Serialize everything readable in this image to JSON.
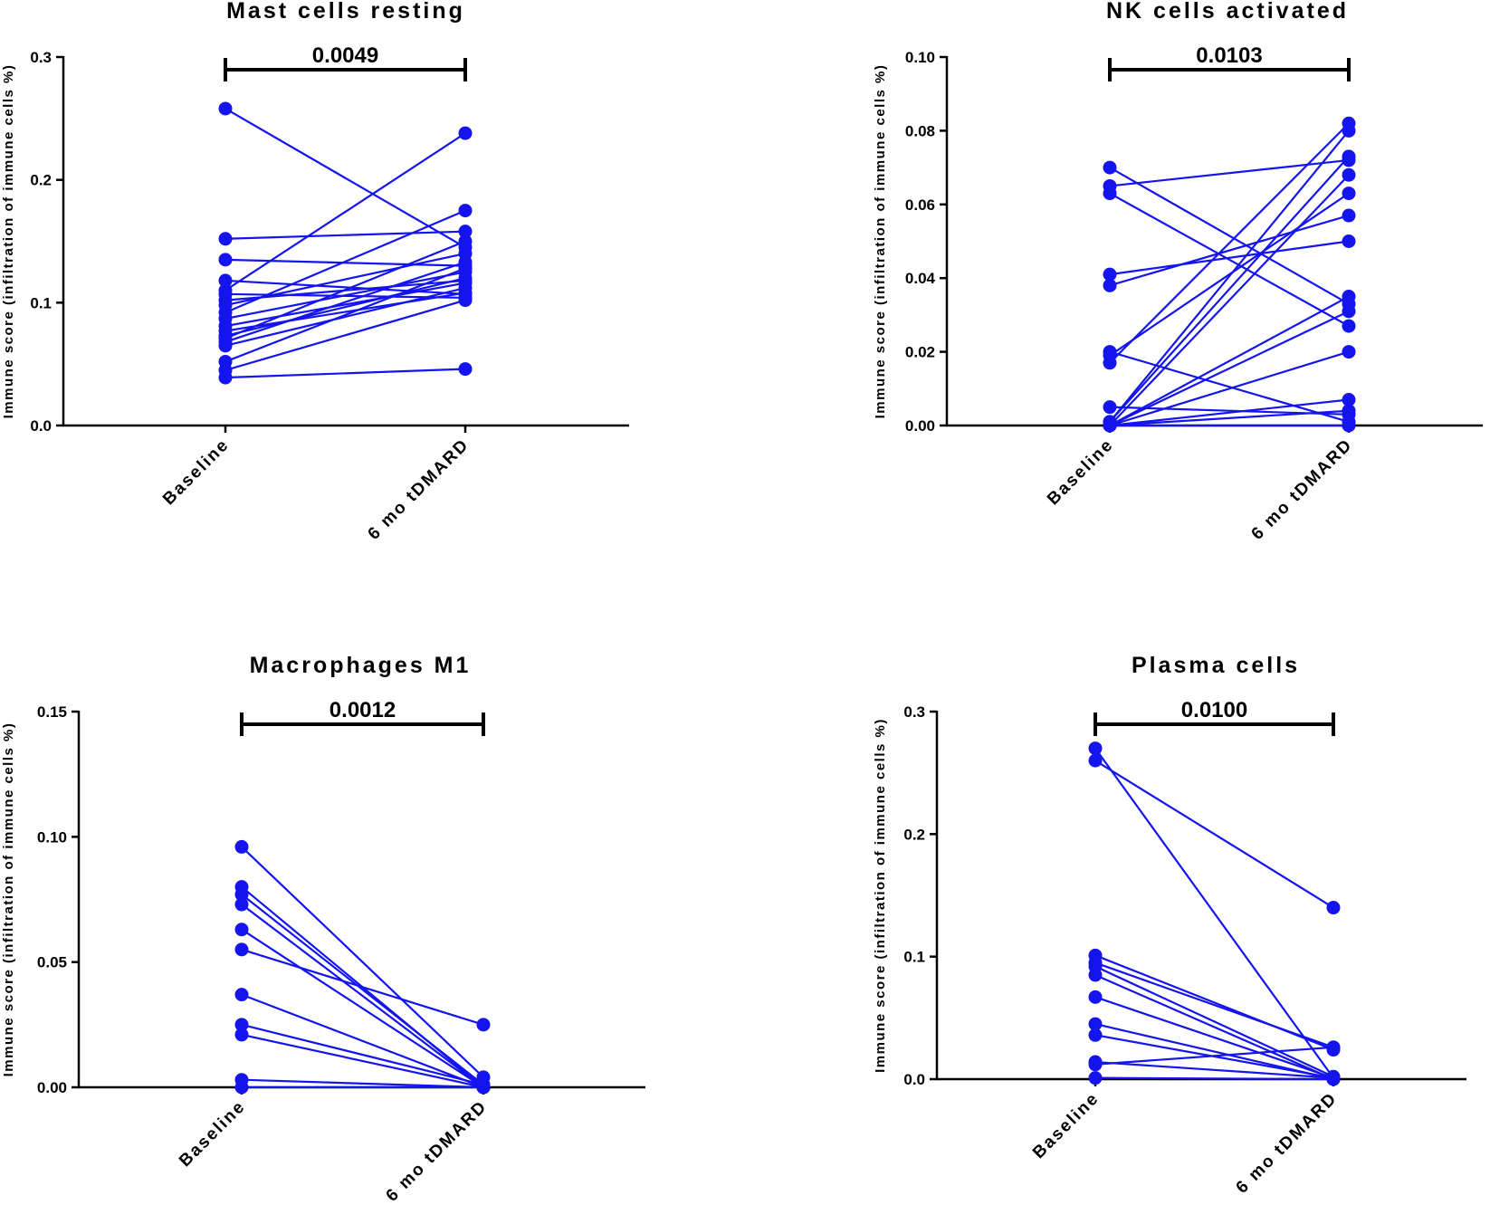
{
  "colors": {
    "series": "#1414ee",
    "axis": "#000000",
    "background": "#ffffff"
  },
  "chart_data": [
    {
      "type": "line",
      "title": "Mast cells resting",
      "pvalue": "0.0049",
      "categories": [
        "Baseline",
        "6 mo tDMARD"
      ],
      "ylabel": "Immune score (infiltration of immune cells %)",
      "ylim": [
        0,
        0.3
      ],
      "yticks": [
        "0.0",
        "0.1",
        "0.2",
        "0.3"
      ],
      "pairs": [
        [
          0.258,
          0.145
        ],
        [
          0.152,
          0.158
        ],
        [
          0.135,
          0.13
        ],
        [
          0.118,
          0.107
        ],
        [
          0.11,
          0.238
        ],
        [
          0.107,
          0.104
        ],
        [
          0.102,
          0.118
        ],
        [
          0.098,
          0.14
        ],
        [
          0.092,
          0.175
        ],
        [
          0.087,
          0.125
        ],
        [
          0.081,
          0.116
        ],
        [
          0.077,
          0.108
        ],
        [
          0.073,
          0.12
        ],
        [
          0.071,
          0.15
        ],
        [
          0.068,
          0.133
        ],
        [
          0.065,
          0.112
        ],
        [
          0.052,
          0.128
        ],
        [
          0.045,
          0.102
        ],
        [
          0.039,
          0.046
        ]
      ]
    },
    {
      "type": "line",
      "title": "NK cells activated",
      "pvalue": "0.0103",
      "categories": [
        "Baseline",
        "6 mo tDMARD"
      ],
      "ylabel": "Immune score (infiltration of immune cells %)",
      "ylim": [
        0,
        0.1
      ],
      "yticks": [
        "0.00",
        "0.02",
        "0.04",
        "0.06",
        "0.08",
        "0.10"
      ],
      "pairs": [
        [
          0.07,
          0.033
        ],
        [
          0.065,
          0.072
        ],
        [
          0.063,
          0.027
        ],
        [
          0.041,
          0.05
        ],
        [
          0.038,
          0.057
        ],
        [
          0.02,
          0.001
        ],
        [
          0.019,
          0.063
        ],
        [
          0.017,
          0.082
        ],
        [
          0.005,
          0.003
        ],
        [
          0.001,
          0.08
        ],
        [
          0.001,
          0.073
        ],
        [
          0.0,
          0.068
        ],
        [
          0.0,
          0.035
        ],
        [
          0.0,
          0.031
        ],
        [
          0.0,
          0.02
        ],
        [
          0.0,
          0.007
        ],
        [
          0.0,
          0.004
        ],
        [
          0.0,
          0.0
        ]
      ]
    },
    {
      "type": "line",
      "title": "Macrophages M1",
      "pvalue": "0.0012",
      "categories": [
        "Baseline",
        "6 mo tDMARD"
      ],
      "ylabel": "Immune score (infiltration of immune cells %)",
      "ylim": [
        0,
        0.15
      ],
      "yticks": [
        "0.00",
        "0.05",
        "0.10",
        "0.15"
      ],
      "pairs": [
        [
          0.096,
          0.004
        ],
        [
          0.08,
          0.0
        ],
        [
          0.077,
          0.001
        ],
        [
          0.073,
          0.0
        ],
        [
          0.063,
          0.0
        ],
        [
          0.055,
          0.025
        ],
        [
          0.037,
          0.0
        ],
        [
          0.025,
          0.001
        ],
        [
          0.021,
          0.0
        ],
        [
          0.003,
          0.0
        ],
        [
          0.0,
          0.0
        ]
      ]
    },
    {
      "type": "line",
      "title": "Plasma cells",
      "pvalue": "0.0100",
      "categories": [
        "Baseline",
        "6 mo tDMARD"
      ],
      "ylabel": "Immune score (infiltration of immune cells %)",
      "ylim": [
        0,
        0.3
      ],
      "yticks": [
        "0.0",
        "0.1",
        "0.2",
        "0.3"
      ],
      "pairs": [
        [
          0.27,
          0.001
        ],
        [
          0.26,
          0.14
        ],
        [
          0.101,
          0.024
        ],
        [
          0.095,
          0.026
        ],
        [
          0.092,
          0.002
        ],
        [
          0.085,
          0.0
        ],
        [
          0.067,
          0.001
        ],
        [
          0.045,
          0.0
        ],
        [
          0.036,
          0.001
        ],
        [
          0.014,
          0.001
        ],
        [
          0.012,
          0.026
        ],
        [
          0.001,
          0.0
        ]
      ]
    }
  ]
}
